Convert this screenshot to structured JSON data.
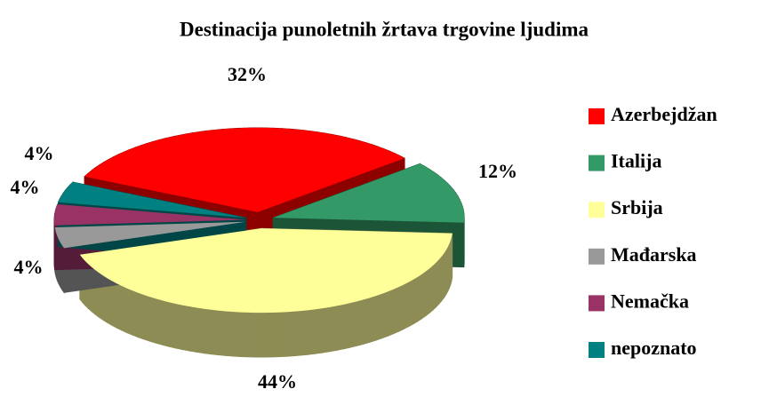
{
  "chart_data": {
    "type": "pie",
    "title": "Destinacija punoletnih žrtava trgovine ljudima",
    "categories": [
      "Azerbejdžan",
      "Italija",
      "Srbija",
      "Mađarska",
      "Nemačka",
      "nepoznato"
    ],
    "values": [
      32,
      12,
      44,
      4,
      4,
      4
    ],
    "value_labels": [
      "32%",
      "12%",
      "44%",
      "4%",
      "4%",
      "4%"
    ],
    "colors": [
      "#ff0000",
      "#339966",
      "#ffff99",
      "#999999",
      "#993366",
      "#008080"
    ],
    "legend": "right"
  }
}
